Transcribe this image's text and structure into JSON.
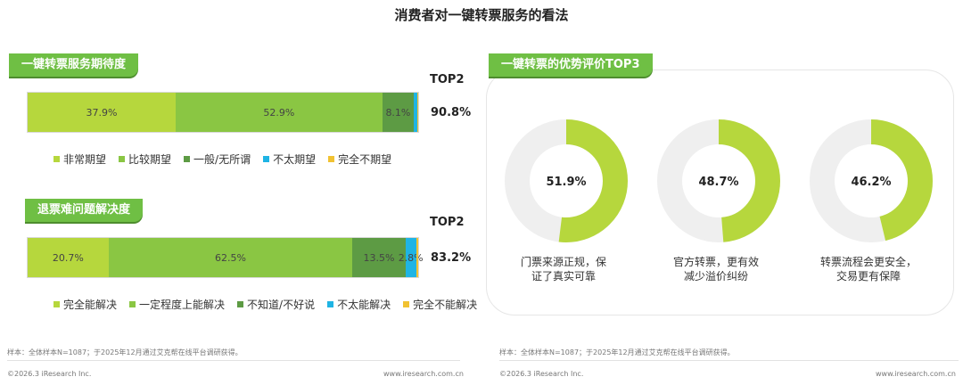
{
  "title": "消费者对一键转票服务的看法",
  "colors": {
    "very": "#b6d73d",
    "fairly": "#8ac643",
    "neutral": "#5d9b44",
    "notvery": "#1fb4e4",
    "notatall": "#f1c232",
    "donut_bg": "#efefef",
    "tag": "#6fbf44"
  },
  "left": {
    "chart1": {
      "tag": "一键转票服务期待度",
      "top2_label": "TOP2",
      "top2_value": "90.8%",
      "legend": [
        "非常期望",
        "比较期望",
        "一般/无所谓",
        "不太期望",
        "完全不期望"
      ]
    },
    "chart2": {
      "tag": "退票难问题解决度",
      "top2_label": "TOP2",
      "top2_value": "83.2%",
      "legend": [
        "完全能解决",
        "一定程度上能解决",
        "不知道/不好说",
        "不太能解决",
        "完全不能解决"
      ]
    },
    "note": "样本：全体样本N=1087；于2025年12月通过艾克帮在线平台调研获得。",
    "footer_left": "©2026.3 iResearch Inc.",
    "footer_right": "www.iresearch.com.cn"
  },
  "right": {
    "tag": "一键转票的优势评价TOP3",
    "note": "样本：全体样本N=1087；于2025年12月通过艾克帮在线平台调研获得。",
    "footer_left": "©2026.3 iResearch Inc.",
    "footer_right": "www.iresearch.com.cn"
  },
  "chart_data": [
    {
      "type": "bar",
      "orientation": "horizontal-stacked-100",
      "title": "一键转票服务期待度",
      "categories": [
        "非常期望",
        "比较期望",
        "一般/无所谓",
        "不太期望",
        "完全不期望"
      ],
      "values": [
        37.9,
        52.9,
        8.1,
        0.8,
        0.3
      ],
      "labels": [
        "37.9%",
        "52.9%",
        "8.1%",
        "",
        ""
      ],
      "colors": [
        "#b6d73d",
        "#8ac643",
        "#5d9b44",
        "#1fb4e4",
        "#f1c232"
      ]
    },
    {
      "type": "bar",
      "orientation": "horizontal-stacked-100",
      "title": "退票难问题解决度",
      "categories": [
        "完全能解决",
        "一定程度上能解决",
        "不知道/不好说",
        "不太能解决",
        "完全不能解决"
      ],
      "values": [
        20.7,
        62.5,
        13.5,
        2.8,
        0.5
      ],
      "labels": [
        "20.7%",
        "62.5%",
        "13.5%",
        "2.8%",
        ""
      ],
      "colors": [
        "#b6d73d",
        "#8ac643",
        "#5d9b44",
        "#1fb4e4",
        "#f1c232"
      ]
    },
    {
      "type": "pie",
      "title": "一键转票的优势评价TOP3",
      "items": [
        {
          "label": "门票来源正规，保证了真实可靠",
          "lines": [
            "门票来源正规，保",
            "证了真实可靠"
          ],
          "value": 51.9,
          "text": "51.9%"
        },
        {
          "label": "官方转票，更有效减少溢价纠纷",
          "lines": [
            "官方转票，更有效",
            "减少溢价纠纷"
          ],
          "value": 48.7,
          "text": "48.7%"
        },
        {
          "label": "转票流程会更安全，交易更有保障",
          "lines": [
            "转票流程会更安全，",
            "交易更有保障"
          ],
          "value": 46.2,
          "text": "46.2%"
        }
      ]
    }
  ]
}
